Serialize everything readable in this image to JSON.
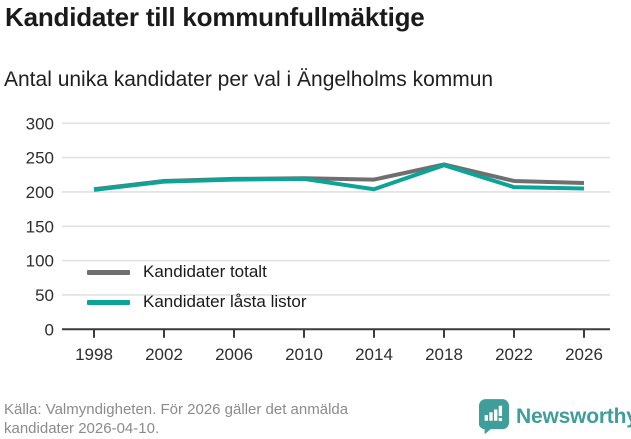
{
  "header": {
    "title": "Kandidater till kommunfullmäktige",
    "subtitle": "Antal unika kandidater per val i Ängelholms kommun"
  },
  "chart_data": {
    "type": "line",
    "x": [
      1998,
      2002,
      2006,
      2010,
      2014,
      2018,
      2022,
      2026
    ],
    "series": [
      {
        "name": "Kandidater totalt",
        "color": "#6f6f6f",
        "values": [
          204,
          216,
          219,
          220,
          218,
          240,
          216,
          213
        ]
      },
      {
        "name": "Kandidater låsta listor",
        "color": "#0ca496",
        "values": [
          203,
          215,
          218,
          219,
          204,
          239,
          207,
          205
        ]
      }
    ],
    "title": "Kandidater till kommunfullmäktige",
    "subtitle": "Antal unika kandidater per val i Ängelholms kommun",
    "xlabel": "",
    "ylabel": "",
    "ylim": [
      0,
      300
    ],
    "yticks": [
      0,
      50,
      100,
      150,
      200,
      250,
      300
    ],
    "grid": "horizontal",
    "legend_position": "inside-left-middle"
  },
  "footer": {
    "source_line1": "Källa: Valmyndigheten. För 2026 gäller det anmälda",
    "source_line2": "kandidater 2026-04-10.",
    "brand": "Newsworthy"
  },
  "colors": {
    "series_total": "#6f6f6f",
    "series_locked": "#0ca496",
    "gridline": "#e1e1e1",
    "axis": "#3b3b3b",
    "tick_label": "#2e2e2e",
    "source_text": "#8b8b8b",
    "logo_teal": "#3f9e9a"
  }
}
